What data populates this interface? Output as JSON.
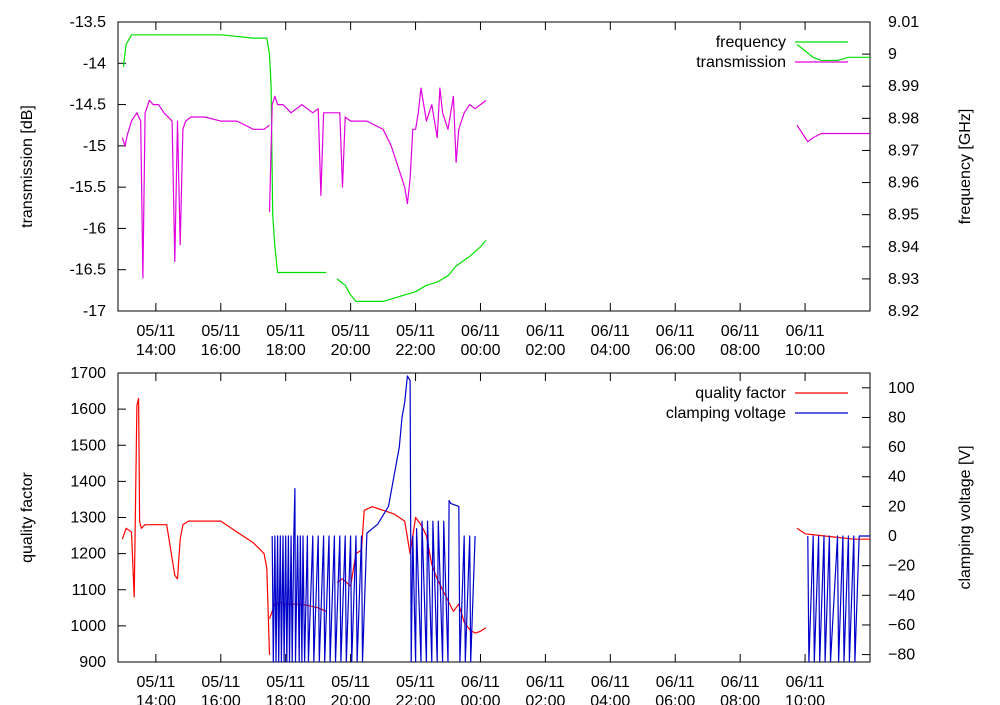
{
  "chart_data": [
    {
      "type": "line",
      "ylabel": "transmission [dB]",
      "y2label": "frequency [GHz]",
      "ylim": [
        -17,
        -13.5
      ],
      "y2lim": [
        8.92,
        9.01
      ],
      "xlim": [
        "05/11 12:50",
        "06/11 12:00"
      ],
      "yticks": [
        "-13.5",
        "-14",
        "-14.5",
        "-15",
        "-15.5",
        "-16",
        "-16.5",
        "-17"
      ],
      "y2ticks": [
        "9.01",
        "9",
        "8.99",
        "8.98",
        "8.97",
        "8.96",
        "8.95",
        "8.94",
        "8.93",
        "8.92"
      ],
      "xticks": [
        {
          "day": "05/11",
          "time": "14:00"
        },
        {
          "day": "05/11",
          "time": "16:00"
        },
        {
          "day": "05/11",
          "time": "18:00"
        },
        {
          "day": "05/11",
          "time": "20:00"
        },
        {
          "day": "05/11",
          "time": "22:00"
        },
        {
          "day": "06/11",
          "time": "00:00"
        },
        {
          "day": "06/11",
          "time": "02:00"
        },
        {
          "day": "06/11",
          "time": "04:00"
        },
        {
          "day": "06/11",
          "time": "06:00"
        },
        {
          "day": "06/11",
          "time": "08:00"
        },
        {
          "day": "06/11",
          "time": "10:00"
        }
      ],
      "legend_position": "top-right",
      "series": [
        {
          "name": "frequency",
          "axis": "right",
          "color": "#00e000",
          "segments": [
            {
              "x": [
                "05/11 13:00",
                "05/11 13:05",
                "05/11 13:15",
                "05/11 14:00",
                "05/11 15:00",
                "05/11 16:00",
                "05/11 17:00",
                "05/11 17:25",
                "05/11 17:30",
                "05/11 17:33",
                "05/11 17:36",
                "05/11 17:40",
                "05/11 17:45",
                "05/11 18:00",
                "05/11 19:00",
                "05/11 19:15"
              ],
              "y": [
                8.996,
                9.003,
                9.006,
                9.006,
                9.006,
                9.006,
                9.005,
                9.005,
                9.0,
                8.99,
                8.95,
                8.94,
                8.932,
                8.932,
                8.932,
                8.932
              ]
            },
            {
              "x": [
                "05/11 19:35",
                "05/11 19:50",
                "05/11 20:00",
                "05/11 20:10",
                "05/11 21:00",
                "05/11 21:20",
                "05/11 21:40",
                "05/11 22:00",
                "05/11 22:20",
                "05/11 22:40",
                "05/11 23:00",
                "05/11 23:15",
                "05/11 23:40",
                "06/11 00:00",
                "06/11 00:10"
              ],
              "y": [
                8.93,
                8.928,
                8.925,
                8.923,
                8.923,
                8.924,
                8.925,
                8.926,
                8.928,
                8.929,
                8.931,
                8.934,
                8.937,
                8.94,
                8.942
              ]
            },
            {
              "x": [
                "06/11 09:45",
                "06/11 10:00",
                "06/11 10:15",
                "06/11 10:30",
                "06/11 11:00",
                "06/11 11:20",
                "06/11 12:00"
              ],
              "y": [
                9.003,
                9.001,
                8.999,
                8.998,
                8.998,
                8.999,
                8.999
              ]
            }
          ]
        },
        {
          "name": "transmission",
          "axis": "left",
          "color": "#e000e0",
          "segments": [
            {
              "x": [
                "05/11 12:58",
                "05/11 13:03",
                "05/11 13:08",
                "05/11 13:15",
                "05/11 13:25",
                "05/11 13:32",
                "05/11 13:36",
                "05/11 13:40",
                "05/11 13:48",
                "05/11 13:55",
                "05/11 14:05",
                "05/11 14:15",
                "05/11 14:30",
                "05/11 14:35",
                "05/11 14:40",
                "05/11 14:45",
                "05/11 14:50",
                "05/11 14:55",
                "05/11 15:05",
                "05/11 15:30",
                "05/11 16:00",
                "05/11 16:30",
                "05/11 17:00",
                "05/11 17:20",
                "05/11 17:30"
              ],
              "y": [
                -14.9,
                -15.0,
                -14.85,
                -14.7,
                -14.6,
                -14.7,
                -16.6,
                -14.6,
                -14.45,
                -14.5,
                -14.5,
                -14.6,
                -14.7,
                -16.4,
                -14.7,
                -16.2,
                -14.8,
                -14.7,
                -14.65,
                -14.65,
                -14.7,
                -14.7,
                -14.8,
                -14.8,
                -14.75
              ]
            },
            {
              "x": [
                "05/11 17:30",
                "05/11 17:35",
                "05/11 17:40",
                "05/11 17:45",
                "05/11 17:55",
                "05/11 18:10",
                "05/11 18:30",
                "05/11 18:50",
                "05/11 19:00",
                "05/11 19:05",
                "05/11 19:10",
                "05/11 19:20",
                "05/11 19:40",
                "05/11 19:45",
                "05/11 19:50",
                "05/11 20:00",
                "05/11 20:30",
                "05/11 21:00",
                "05/11 21:15",
                "05/11 21:30",
                "05/11 21:40",
                "05/11 21:45",
                "05/11 21:50",
                "05/11 21:55",
                "05/11 22:00",
                "05/11 22:05",
                "05/11 22:10",
                "05/11 22:20",
                "05/11 22:30",
                "05/11 22:40",
                "05/11 22:45",
                "05/11 22:50",
                "05/11 23:00",
                "05/11 23:10",
                "05/11 23:15",
                "05/11 23:20",
                "05/11 23:30",
                "05/11 23:40",
                "05/11 23:50",
                "06/11 00:00",
                "06/11 00:10"
              ],
              "y": [
                -15.8,
                -14.5,
                -14.4,
                -14.5,
                -14.5,
                -14.6,
                -14.5,
                -14.6,
                -14.55,
                -15.6,
                -14.6,
                -14.6,
                -14.6,
                -15.5,
                -14.65,
                -14.7,
                -14.7,
                -14.8,
                -15.0,
                -15.3,
                -15.5,
                -15.7,
                -15.4,
                -14.8,
                -14.8,
                -14.6,
                -14.3,
                -14.7,
                -14.5,
                -14.9,
                -14.3,
                -14.6,
                -14.8,
                -14.4,
                -15.2,
                -14.8,
                -14.6,
                -14.5,
                -14.55,
                -14.5,
                -14.45
              ]
            },
            {
              "x": [
                "06/11 09:45",
                "06/11 09:55",
                "06/11 10:05",
                "06/11 10:15",
                "06/11 10:30",
                "06/11 11:00",
                "06/11 11:30",
                "06/11 12:00"
              ],
              "y": [
                -14.75,
                -14.85,
                -14.95,
                -14.9,
                -14.85,
                -14.85,
                -14.85,
                -14.85
              ]
            }
          ]
        }
      ]
    },
    {
      "type": "line",
      "ylabel": "quality factor",
      "y2label": "clamping voltage [V]",
      "ylim": [
        900,
        1700
      ],
      "y2lim": [
        -85,
        110
      ],
      "xlim": [
        "05/11 12:50",
        "06/11 12:00"
      ],
      "yticks": [
        "1700",
        "1600",
        "1500",
        "1400",
        "1300",
        "1200",
        "1100",
        "1000",
        "900"
      ],
      "y2ticks": [
        "100",
        "80",
        "60",
        "40",
        "20",
        "0",
        "−20",
        "−40",
        "−60",
        "−80"
      ],
      "xticks": [
        {
          "day": "05/11",
          "time": "14:00"
        },
        {
          "day": "05/11",
          "time": "16:00"
        },
        {
          "day": "05/11",
          "time": "18:00"
        },
        {
          "day": "05/11",
          "time": "20:00"
        },
        {
          "day": "05/11",
          "time": "22:00"
        },
        {
          "day": "06/11",
          "time": "00:00"
        },
        {
          "day": "06/11",
          "time": "02:00"
        },
        {
          "day": "06/11",
          "time": "04:00"
        },
        {
          "day": "06/11",
          "time": "06:00"
        },
        {
          "day": "06/11",
          "time": "08:00"
        },
        {
          "day": "06/11",
          "time": "10:00"
        }
      ],
      "legend_position": "top-right",
      "series": [
        {
          "name": "quality factor",
          "axis": "left",
          "color": "#ff0000",
          "segments": [
            {
              "x": [
                "05/11 12:58",
                "05/11 13:05",
                "05/11 13:15",
                "05/11 13:20",
                "05/11 13:25",
                "05/11 13:28",
                "05/11 13:30",
                "05/11 13:33",
                "05/11 13:40",
                "05/11 14:00",
                "05/11 14:20",
                "05/11 14:35",
                "05/11 14:40",
                "05/11 14:45",
                "05/11 14:50",
                "05/11 15:00",
                "05/11 15:30",
                "05/11 16:00",
                "05/11 16:30",
                "05/11 17:00",
                "05/11 17:20",
                "05/11 17:25",
                "05/11 17:30"
              ],
              "y": [
                1240,
                1270,
                1260,
                1080,
                1610,
                1630,
                1290,
                1270,
                1280,
                1280,
                1280,
                1140,
                1130,
                1240,
                1280,
                1290,
                1290,
                1290,
                1260,
                1230,
                1200,
                1160,
                920
              ]
            },
            {
              "x": [
                "05/11 17:30",
                "05/11 17:40",
                "05/11 17:50",
                "05/11 18:00",
                "05/11 18:30",
                "05/11 19:00",
                "05/11 19:15"
              ],
              "y": [
                1020,
                1060,
                1065,
                1060,
                1060,
                1050,
                1040
              ]
            },
            {
              "x": [
                "05/11 19:35",
                "05/11 19:45",
                "05/11 20:00",
                "05/11 20:10",
                "05/11 20:20",
                "05/11 20:25",
                "05/11 20:40",
                "05/11 21:00",
                "05/11 21:20",
                "05/11 21:40",
                "05/11 21:50",
                "05/11 22:00",
                "05/11 22:10",
                "05/11 22:20",
                "05/11 22:30",
                "05/11 22:40",
                "05/11 22:50",
                "05/11 23:00",
                "05/11 23:10",
                "05/11 23:20",
                "05/11 23:30",
                "05/11 23:40",
                "05/11 23:50",
                "06/11 00:00",
                "06/11 00:10"
              ],
              "y": [
                1120,
                1130,
                1110,
                1200,
                1210,
                1320,
                1330,
                1320,
                1310,
                1290,
                1200,
                1300,
                1280,
                1250,
                1170,
                1130,
                1100,
                1070,
                1040,
                1060,
                1010,
                990,
                980,
                985,
                995
              ]
            },
            {
              "x": [
                "06/11 09:45",
                "06/11 10:00",
                "06/11 10:30",
                "06/11 11:00",
                "06/11 11:30",
                "06/11 12:00"
              ],
              "y": [
                1270,
                1255,
                1250,
                1245,
                1240,
                1240
              ]
            }
          ]
        },
        {
          "name": "clamping voltage",
          "axis": "right",
          "color": "#0000cc",
          "segments": [
            {
              "x": [
                "05/11 17:35",
                "05/11 17:37",
                "05/11 17:40",
                "05/11 17:42",
                "05/11 17:45",
                "05/11 17:47",
                "05/11 17:50",
                "05/11 17:52",
                "05/11 17:55",
                "05/11 17:57",
                "05/11 18:00",
                "05/11 18:02",
                "05/11 18:05",
                "05/11 18:07",
                "05/11 18:10",
                "05/11 18:12",
                "05/11 18:15",
                "05/11 18:17",
                "05/11 18:18",
                "05/11 18:22",
                "05/11 18:25",
                "05/11 18:27",
                "05/11 18:30",
                "05/11 18:32",
                "05/11 18:35",
                "05/11 18:40",
                "05/11 18:42",
                "05/11 18:50",
                "05/11 18:52",
                "05/11 19:00",
                "05/11 19:02",
                "05/11 19:10",
                "05/11 19:12",
                "05/11 19:20",
                "05/11 19:22",
                "05/11 19:30",
                "05/11 19:32",
                "05/11 19:40",
                "05/11 19:42",
                "05/11 19:50",
                "05/11 19:52",
                "05/11 20:00",
                "05/11 20:02",
                "05/11 20:10",
                "05/11 20:12",
                "05/11 20:20",
                "05/11 20:22",
                "05/11 20:30",
                "05/11 20:50",
                "05/11 21:10",
                "05/11 21:20",
                "05/11 21:30",
                "05/11 21:35",
                "05/11 21:40",
                "05/11 21:45",
                "05/11 21:50",
                "05/11 21:52",
                "05/11 21:55",
                "05/11 22:00",
                "05/11 22:02",
                "05/11 22:10",
                "05/11 22:12",
                "05/11 22:20",
                "05/11 22:22",
                "05/11 22:30",
                "05/11 22:32",
                "05/11 22:40",
                "05/11 22:42",
                "05/11 22:50",
                "05/11 22:52",
                "05/11 23:00",
                "05/11 23:02",
                "05/11 23:05",
                "05/11 23:20",
                "05/11 23:22",
                "05/11 23:30",
                "05/11 23:32",
                "05/11 23:40",
                "05/11 23:42",
                "05/11 23:50"
              ],
              "y": [
                0,
                -85,
                0,
                -85,
                0,
                -85,
                0,
                -85,
                0,
                -85,
                0,
                -85,
                0,
                -85,
                0,
                -85,
                0,
                32,
                -85,
                0,
                -85,
                0,
                -85,
                0,
                -85,
                0,
                -85,
                0,
                -85,
                0,
                -85,
                0,
                -85,
                0,
                -85,
                0,
                -85,
                0,
                -85,
                0,
                -85,
                0,
                -85,
                0,
                -85,
                0,
                -85,
                2,
                8,
                20,
                40,
                60,
                80,
                90,
                108,
                105,
                -85,
                0,
                -85,
                5,
                -85,
                10,
                -85,
                10,
                -85,
                10,
                -85,
                10,
                -85,
                10,
                -85,
                24,
                22,
                20,
                -85,
                0,
                -85,
                0,
                -85,
                0
              ]
            },
            {
              "x": [
                "06/11 10:05",
                "06/11 10:07",
                "06/11 10:15",
                "06/11 10:17",
                "06/11 10:25",
                "06/11 10:27",
                "06/11 10:35",
                "06/11 10:37",
                "06/11 10:45",
                "06/11 10:47",
                "06/11 11:00",
                "06/11 11:02",
                "06/11 11:10",
                "06/11 11:12",
                "06/11 11:20",
                "06/11 11:22",
                "06/11 11:30",
                "06/11 11:32",
                "06/11 11:40",
                "06/11 12:00"
              ],
              "y": [
                0,
                -85,
                0,
                -85,
                0,
                -85,
                0,
                -85,
                0,
                -85,
                0,
                -85,
                0,
                -85,
                0,
                -85,
                0,
                -85,
                0,
                0
              ]
            }
          ]
        }
      ]
    }
  ]
}
